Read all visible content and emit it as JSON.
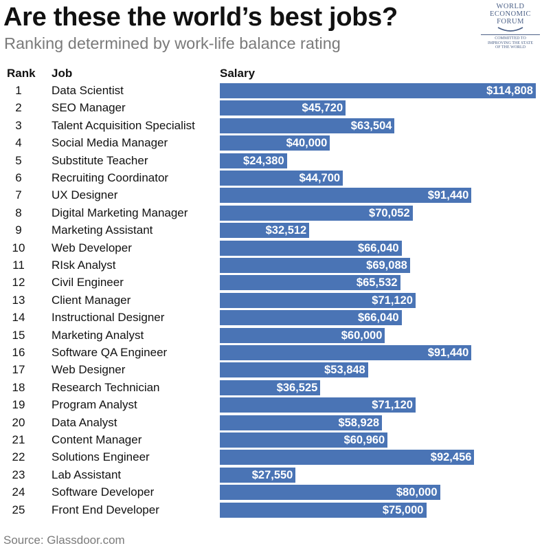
{
  "title": "Are these the world’s best jobs?",
  "subtitle": "Ranking determined by work-life balance rating",
  "logo": {
    "line1": "WORLD",
    "line2": "ECONOMIC",
    "line3": "FORUM",
    "tagline1": "COMMITTED TO",
    "tagline2": "IMPROVING THE STATE",
    "tagline3": "OF THE WORLD"
  },
  "headers": {
    "rank": "Rank",
    "job": "Job",
    "salary": "Salary"
  },
  "source": "Source: Glassdoor.com",
  "colors": {
    "bar": "#4a74b5",
    "bar_label": "#ffffff",
    "subtitle": "#7a7a7a",
    "logo": "#4a5f86"
  },
  "chart_data": {
    "type": "bar",
    "orientation": "horizontal",
    "title": "Are these the world’s best jobs?",
    "subtitle": "Ranking determined by work-life balance rating",
    "xlim": [
      0,
      114808
    ],
    "grid": false,
    "rows": [
      {
        "rank": "1",
        "job": "Data Scientist",
        "salary": 114808,
        "label": "$114,808"
      },
      {
        "rank": "2",
        "job": "SEO Manager",
        "salary": 45720,
        "label": "$45,720"
      },
      {
        "rank": "3",
        "job": "Talent Acquisition Specialist",
        "salary": 63504,
        "label": "$63,504"
      },
      {
        "rank": "4",
        "job": "Social Media Manager",
        "salary": 40000,
        "label": "$40,000"
      },
      {
        "rank": "5",
        "job": "Substitute Teacher",
        "salary": 24380,
        "label": "$24,380"
      },
      {
        "rank": "6",
        "job": "Recruiting Coordinator",
        "salary": 44700,
        "label": "$44,700"
      },
      {
        "rank": "7",
        "job": "UX Designer",
        "salary": 91440,
        "label": "$91,440"
      },
      {
        "rank": "8",
        "job": "Digital Marketing Manager",
        "salary": 70052,
        "label": "$70,052"
      },
      {
        "rank": "9",
        "job": "Marketing Assistant",
        "salary": 32512,
        "label": "$32,512"
      },
      {
        "rank": "10",
        "job": "Web Developer",
        "salary": 66040,
        "label": "$66,040"
      },
      {
        "rank": "11",
        "job": "RIsk Analyst",
        "salary": 69088,
        "label": "$69,088"
      },
      {
        "rank": "12",
        "job": "Civil Engineer",
        "salary": 65532,
        "label": "$65,532"
      },
      {
        "rank": "13",
        "job": "Client Manager",
        "salary": 71120,
        "label": "$71,120"
      },
      {
        "rank": "14",
        "job": "Instructional Designer",
        "salary": 66040,
        "label": "$66,040"
      },
      {
        "rank": "15",
        "job": "Marketing Analyst",
        "salary": 60000,
        "label": "$60,000"
      },
      {
        "rank": "16",
        "job": "Software QA Engineer",
        "salary": 91440,
        "label": "$91,440"
      },
      {
        "rank": "17",
        "job": "Web Designer",
        "salary": 53848,
        "label": "$53,848"
      },
      {
        "rank": "18",
        "job": "Research Technician",
        "salary": 36525,
        "label": "$36,525"
      },
      {
        "rank": "19",
        "job": "Program Analyst",
        "salary": 71120,
        "label": "$71,120"
      },
      {
        "rank": "20",
        "job": "Data Analyst",
        "salary": 58928,
        "label": "$58,928"
      },
      {
        "rank": "21",
        "job": "Content Manager",
        "salary": 60960,
        "label": "$60,960"
      },
      {
        "rank": "22",
        "job": "Solutions Engineer",
        "salary": 92456,
        "label": "$92,456"
      },
      {
        "rank": "23",
        "job": "Lab Assistant",
        "salary": 27550,
        "label": "$27,550"
      },
      {
        "rank": "24",
        "job": "Software Developer",
        "salary": 80000,
        "label": "$80,000"
      },
      {
        "rank": "25",
        "job": "Front End Developer",
        "salary": 75000,
        "label": "$75,000"
      }
    ]
  }
}
